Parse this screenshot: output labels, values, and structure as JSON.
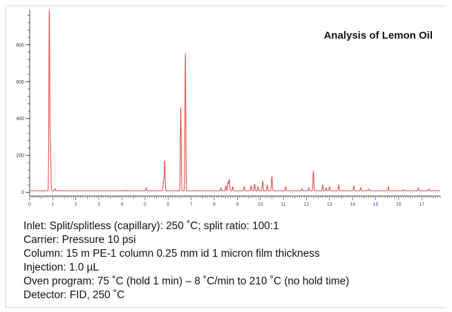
{
  "chart_data": {
    "type": "line",
    "title": "Analysis of Lemon Oil",
    "xlabel": "",
    "ylabel": "",
    "xlim": [
      0,
      17.8
    ],
    "ylim": [
      -20,
      990
    ],
    "x_ticks": [
      0,
      1,
      2,
      3,
      4,
      5,
      6,
      7,
      8,
      9,
      10,
      11,
      12,
      13,
      14,
      15,
      16,
      17
    ],
    "y_ticks": [
      0,
      200,
      400,
      600,
      800
    ],
    "baseline": 8,
    "line_color": "#e0524f",
    "peaks": [
      {
        "x": 0.85,
        "y": 985
      },
      {
        "x": 0.9,
        "y": 250
      },
      {
        "x": 1.1,
        "y": 20
      },
      {
        "x": 4.2,
        "y": 12
      },
      {
        "x": 5.05,
        "y": 25
      },
      {
        "x": 5.8,
        "y": 60
      },
      {
        "x": 5.85,
        "y": 170
      },
      {
        "x": 6.55,
        "y": 460
      },
      {
        "x": 6.75,
        "y": 750
      },
      {
        "x": 7.3,
        "y": 10
      },
      {
        "x": 8.3,
        "y": 25
      },
      {
        "x": 8.5,
        "y": 35
      },
      {
        "x": 8.6,
        "y": 55
      },
      {
        "x": 8.65,
        "y": 70
      },
      {
        "x": 8.8,
        "y": 30
      },
      {
        "x": 9.3,
        "y": 30
      },
      {
        "x": 9.6,
        "y": 35
      },
      {
        "x": 9.75,
        "y": 45
      },
      {
        "x": 9.9,
        "y": 30
      },
      {
        "x": 10.1,
        "y": 60
      },
      {
        "x": 10.3,
        "y": 40
      },
      {
        "x": 10.5,
        "y": 85
      },
      {
        "x": 11.1,
        "y": 30
      },
      {
        "x": 11.8,
        "y": 20
      },
      {
        "x": 12.1,
        "y": 25
      },
      {
        "x": 12.3,
        "y": 115
      },
      {
        "x": 12.7,
        "y": 40
      },
      {
        "x": 12.85,
        "y": 25
      },
      {
        "x": 13.0,
        "y": 30
      },
      {
        "x": 13.4,
        "y": 40
      },
      {
        "x": 14.05,
        "y": 35
      },
      {
        "x": 14.35,
        "y": 25
      },
      {
        "x": 14.7,
        "y": 18
      },
      {
        "x": 15.55,
        "y": 30
      },
      {
        "x": 16.2,
        "y": 15
      },
      {
        "x": 16.85,
        "y": 25
      },
      {
        "x": 17.3,
        "y": 18
      }
    ]
  },
  "conditions": [
    "Inlet: Split/splitless (capillary): 250 ˚C; split ratio: 100:1",
    "Carrier: Pressure 10 psi",
    "Column: 15 m PE-1 column 0.25 mm id 1 micron film thickness",
    "Injection: 1.0 µL",
    "Oven program: 75 ˚C (hold 1 min) – 8 ˚C/min to 210 ˚C (no hold time)",
    "Detector: FID, 250 ˚C"
  ]
}
